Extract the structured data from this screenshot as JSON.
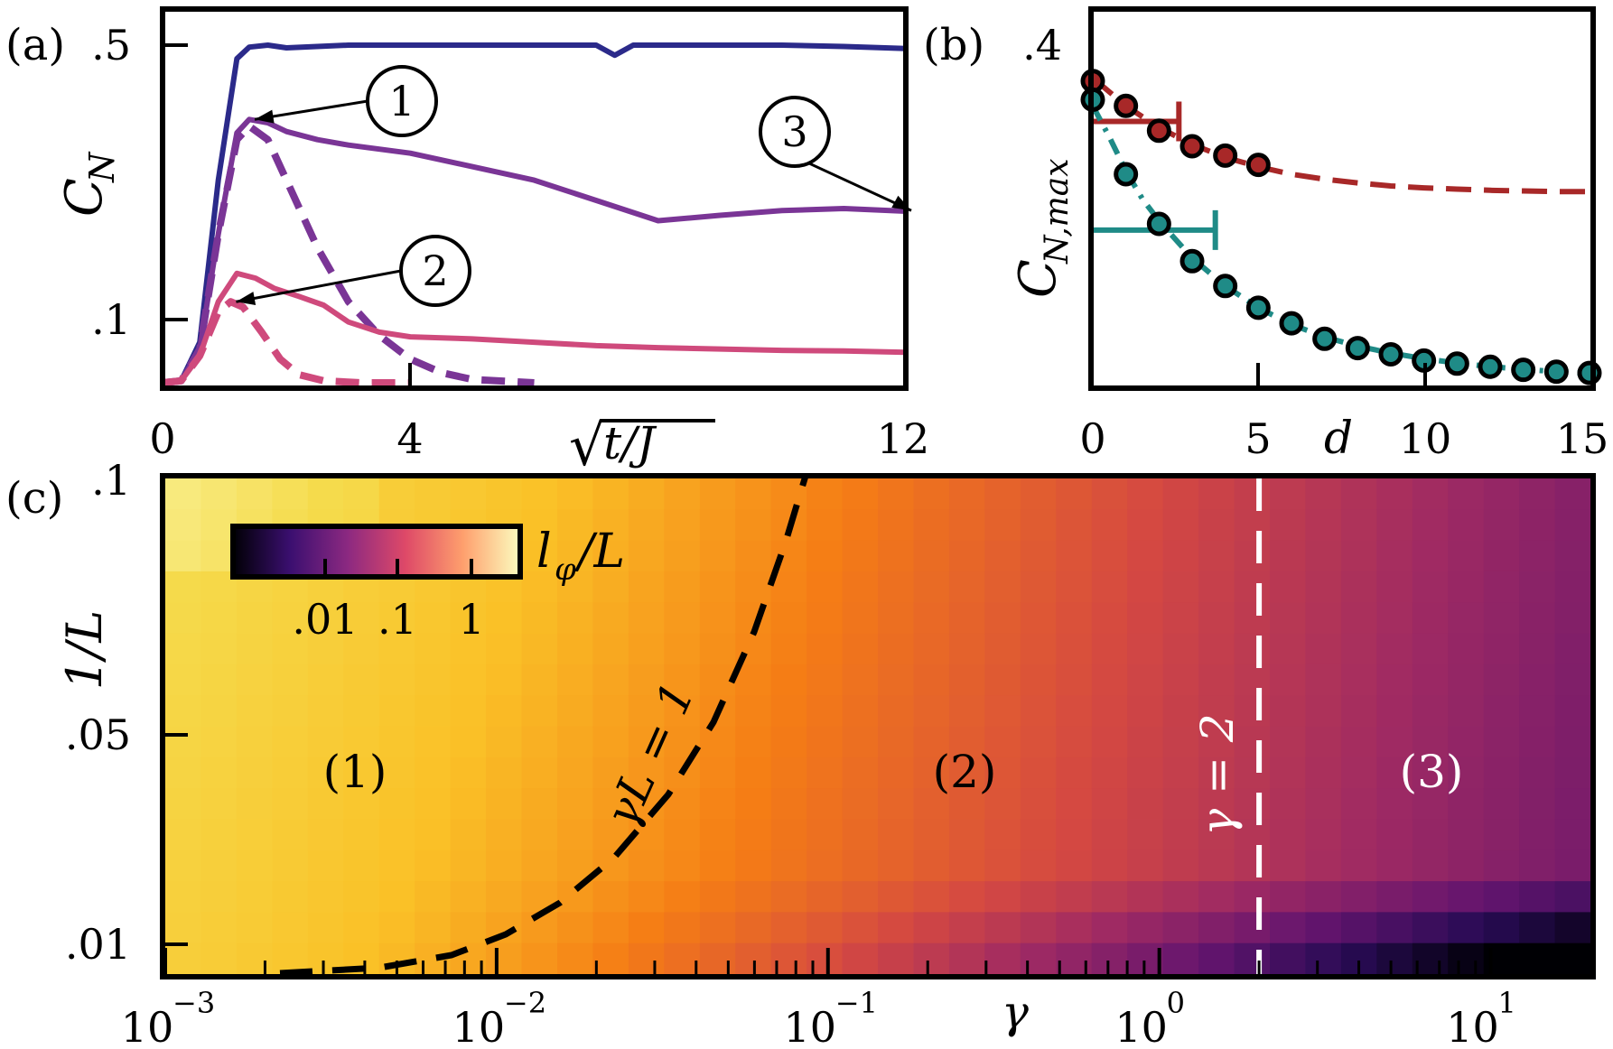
{
  "colors": {
    "a_series1": "#2b2a8a",
    "a_series2": "#7a3596",
    "a_series3": "#cf4a7c",
    "b_red": "#a82828",
    "b_teal": "#1f8b87",
    "white_dash": "#ffffff",
    "black": "#000000"
  },
  "chart_data": [
    {
      "type": "line",
      "panel_label": "(a)",
      "xlabel": "√(t/J)",
      "ylabel": "C_N",
      "ylabel_main": "C",
      "ylabel_sub": "N",
      "xlim": [
        0,
        12
      ],
      "ylim": [
        0.0,
        0.5
      ],
      "x_ticks": [
        "0",
        "4",
        "12"
      ],
      "x_tick_values": [
        0,
        4,
        12
      ],
      "y_ticks": [
        ".5",
        ".1"
      ],
      "y_tick_values": [
        0.5,
        0.1
      ],
      "series": [
        {
          "style": "solid",
          "color_key": "a_series1",
          "x": [
            0,
            0.3,
            0.6,
            0.9,
            1.2,
            1.4,
            1.7,
            2.0,
            3,
            4,
            5,
            6,
            7,
            7.3,
            7.6,
            8,
            9,
            10,
            11,
            12
          ],
          "y": [
            0.0,
            0.003,
            0.06,
            0.3,
            0.48,
            0.497,
            0.5,
            0.496,
            0.5,
            0.5,
            0.5,
            0.5,
            0.5,
            0.485,
            0.5,
            0.5,
            0.5,
            0.5,
            0.498,
            0.495
          ]
        },
        {
          "style": "solid",
          "color_key": "a_series2",
          "x": [
            0,
            0.3,
            0.6,
            0.9,
            1.2,
            1.4,
            1.7,
            2.0,
            2.5,
            3,
            4,
            5,
            6,
            7,
            8,
            9,
            10,
            11,
            12
          ],
          "y": [
            0.0,
            0.003,
            0.05,
            0.22,
            0.37,
            0.39,
            0.385,
            0.372,
            0.36,
            0.352,
            0.34,
            0.32,
            0.3,
            0.27,
            0.24,
            0.248,
            0.255,
            0.258,
            0.254
          ]
        },
        {
          "style": "dashed",
          "color_key": "a_series2",
          "x": [
            0,
            0.3,
            0.6,
            0.9,
            1.2,
            1.4,
            1.7,
            2.0,
            2.5,
            3,
            3.5,
            4,
            4.5,
            5,
            6
          ],
          "y": [
            0.0,
            0.003,
            0.05,
            0.22,
            0.36,
            0.38,
            0.36,
            0.3,
            0.2,
            0.12,
            0.07,
            0.035,
            0.015,
            0.005,
            0.0
          ]
        },
        {
          "style": "solid",
          "color_key": "a_series3",
          "x": [
            0,
            0.3,
            0.6,
            0.9,
            1.2,
            1.5,
            1.8,
            2.2,
            2.6,
            3,
            3.5,
            4,
            5,
            6,
            7,
            8,
            9,
            10,
            11,
            12
          ],
          "y": [
            0.0,
            0.003,
            0.04,
            0.12,
            0.162,
            0.155,
            0.14,
            0.128,
            0.115,
            0.09,
            0.075,
            0.068,
            0.065,
            0.06,
            0.055,
            0.052,
            0.05,
            0.048,
            0.047,
            0.045
          ]
        },
        {
          "style": "dashed",
          "color_key": "a_series3",
          "x": [
            0,
            0.3,
            0.6,
            0.9,
            1.1,
            1.3,
            1.6,
            1.9,
            2.2,
            2.6,
            3.2,
            4
          ],
          "y": [
            0.0,
            0.003,
            0.04,
            0.105,
            0.12,
            0.112,
            0.075,
            0.035,
            0.012,
            0.003,
            0.0,
            0.0
          ]
        }
      ],
      "annotations": [
        {
          "text": "1",
          "x": 1.4,
          "y": 0.39
        },
        {
          "text": "2",
          "x": 1.1,
          "y": 0.12
        },
        {
          "text": "3",
          "x": 12,
          "y": 0.255
        }
      ]
    },
    {
      "type": "scatter",
      "panel_label": "(b)",
      "xlabel": "d",
      "ylabel": "C_{N,max}",
      "ylabel_main": "C",
      "ylabel_sub": "N,max",
      "xlim": [
        0,
        15
      ],
      "ylim": [
        0.0,
        0.5
      ],
      "x_ticks": [
        "0",
        "5",
        "10",
        "15"
      ],
      "x_tick_values": [
        0,
        5,
        10,
        15
      ],
      "y_ticks": [
        ".4"
      ],
      "y_tick_values": [
        0.4
      ],
      "series": [
        {
          "color_key": "b_red",
          "points": {
            "x": [
              0,
              1,
              2,
              3,
              4,
              5
            ],
            "y": [
              0.48,
              0.44,
              0.4,
              0.375,
              0.36,
              0.345
            ]
          },
          "fit": {
            "x": [
              0,
              1,
              2,
              3,
              4,
              5,
              6,
              7,
              8,
              9,
              10,
              11,
              12,
              13,
              14,
              15
            ],
            "y": [
              0.485,
              0.44,
              0.405,
              0.378,
              0.357,
              0.342,
              0.33,
              0.322,
              0.316,
              0.311,
              0.308,
              0.306,
              0.304,
              0.303,
              0.302,
              0.302
            ]
          },
          "errorbar": {
            "x": 0,
            "xerr": 2.6,
            "y": 0.415
          }
        },
        {
          "color_key": "b_teal",
          "points": {
            "x": [
              0,
              1,
              2,
              3,
              4,
              5,
              6,
              7,
              8,
              9,
              10,
              11,
              12,
              13,
              14,
              15
            ],
            "y": [
              0.45,
              0.33,
              0.25,
              0.19,
              0.15,
              0.115,
              0.09,
              0.065,
              0.05,
              0.04,
              0.03,
              0.025,
              0.02,
              0.015,
              0.012,
              0.01
            ]
          },
          "fit": {
            "x": [
              0,
              0.5,
              1,
              1.5,
              2,
              3,
              4,
              5,
              6,
              7,
              8,
              9,
              10,
              11,
              12,
              13,
              14,
              15
            ],
            "y": [
              0.44,
              0.39,
              0.335,
              0.29,
              0.255,
              0.195,
              0.15,
              0.115,
              0.088,
              0.068,
              0.053,
              0.042,
              0.033,
              0.026,
              0.02,
              0.016,
              0.012,
              0.009
            ]
          },
          "errorbar": {
            "x": 0,
            "xerr": 3.7,
            "y": 0.24
          }
        }
      ]
    },
    {
      "type": "heatmap",
      "panel_label": "(c)",
      "xlabel": "γ",
      "ylabel": "1/L",
      "xscale": "log",
      "xlim": [
        0.001,
        20
      ],
      "ylim": [
        0.0075,
        0.1
      ],
      "x_ticks": [
        {
          "base": "10",
          "exp": "−3"
        },
        {
          "base": "10",
          "exp": "−2"
        },
        {
          "base": "10",
          "exp": "−1"
        },
        {
          "base": "10",
          "exp": "0"
        },
        {
          "base": "10",
          "exp": "1"
        }
      ],
      "x_tick_values": [
        0.001,
        0.01,
        0.1,
        1,
        10
      ],
      "y_ticks": [
        ".1",
        ".05",
        ".01"
      ],
      "y_tick_values": [
        0.1,
        0.05,
        0.01
      ],
      "colorbar": {
        "label": "l_φ/L",
        "label_main": "l",
        "label_sub": "φ",
        "label_tail": "/L",
        "ticks": [
          ".01",
          ".1",
          "1"
        ],
        "colormap": "inferno"
      },
      "curves": [
        {
          "label": "γL = 1",
          "style": "dashed",
          "color_key": "black"
        },
        {
          "label": "γ = 2",
          "style": "dashed",
          "color_key": "white_dash",
          "gamma": 2
        }
      ],
      "regions": [
        "(1)",
        "(2)",
        "(3)"
      ]
    }
  ]
}
